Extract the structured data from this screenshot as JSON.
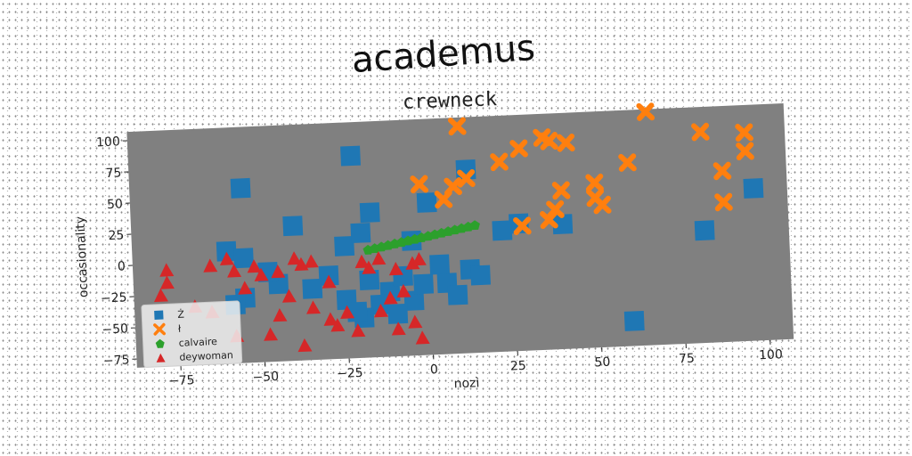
{
  "chart_data": {
    "type": "scatter",
    "title": "academus",
    "subtitle": "crewneck",
    "xlabel": "nozì",
    "ylabel": "occasionality",
    "xlim": [
      -88,
      107
    ],
    "ylim": [
      -82,
      107
    ],
    "xticks": [
      -75,
      -50,
      -25,
      0,
      25,
      50,
      75,
      100
    ],
    "yticks": [
      100,
      75,
      50,
      25,
      0,
      -25,
      -50,
      -75
    ],
    "grid": false,
    "legend_position": "lower-left",
    "colors": {
      "plot_bg": "#808080",
      "Ż": "#1f77b4",
      "ł": "#ff7f0e",
      "calvaire": "#2ca02c",
      "deywoman": "#d62728"
    },
    "series": [
      {
        "name": "Ż",
        "marker": "square",
        "color": "#1f77b4",
        "points": [
          [
            -22,
            80
          ],
          [
            -55,
            58
          ],
          [
            12,
            65
          ],
          [
            -40,
            26
          ],
          [
            -17,
            34
          ],
          [
            0,
            40
          ],
          [
            -25,
            8
          ],
          [
            -60,
            8
          ],
          [
            -55,
            2
          ],
          [
            -20,
            18
          ],
          [
            -5,
            10
          ],
          [
            27,
            20
          ],
          [
            22,
            15
          ],
          [
            40,
            18
          ],
          [
            82,
            8
          ],
          [
            97,
            40
          ],
          [
            -30,
            -15
          ],
          [
            -35,
            -25
          ],
          [
            -18,
            -20
          ],
          [
            -12,
            -30
          ],
          [
            5,
            -25
          ],
          [
            12,
            -15
          ],
          [
            15,
            -20
          ],
          [
            -8,
            -18
          ],
          [
            -15,
            -40
          ],
          [
            -20,
            -50
          ],
          [
            -25,
            -35
          ],
          [
            -45,
            -20
          ],
          [
            -55,
            -30
          ],
          [
            -58,
            -35
          ],
          [
            -48,
            -10
          ],
          [
            -22,
            -45
          ],
          [
            -5,
            -38
          ],
          [
            8,
            -35
          ],
          [
            60,
            -62
          ],
          [
            -2,
            -25
          ],
          [
            -10,
            -48
          ],
          [
            3,
            -10
          ]
        ]
      },
      {
        "name": "ł",
        "marker": "x",
        "color": "#ff7f0e",
        "points": [
          [
            10,
            100
          ],
          [
            66,
            105
          ],
          [
            95,
            85
          ],
          [
            82,
            87
          ],
          [
            35,
            88
          ],
          [
            37,
            85
          ],
          [
            42,
            83
          ],
          [
            28,
            80
          ],
          [
            22,
            70
          ],
          [
            60,
            65
          ],
          [
            12,
            58
          ],
          [
            -2,
            55
          ],
          [
            8,
            52
          ],
          [
            5,
            42
          ],
          [
            40,
            45
          ],
          [
            50,
            50
          ],
          [
            88,
            55
          ],
          [
            95,
            70
          ],
          [
            50,
            38
          ],
          [
            52,
            32
          ],
          [
            38,
            30
          ],
          [
            36,
            22
          ],
          [
            28,
            18
          ],
          [
            88,
            30
          ]
        ]
      },
      {
        "name": "calvaire",
        "marker": "pentagon",
        "color": "#2ca02c",
        "points": [
          [
            -18,
            4
          ],
          [
            -16,
            5
          ],
          [
            -14,
            6
          ],
          [
            -12,
            7
          ],
          [
            -10,
            8
          ],
          [
            -8,
            9
          ],
          [
            -6,
            10
          ],
          [
            -4,
            11
          ],
          [
            -2,
            12
          ],
          [
            0,
            13
          ],
          [
            2,
            14
          ],
          [
            4,
            15
          ],
          [
            6,
            16
          ],
          [
            8,
            17
          ],
          [
            10,
            18
          ],
          [
            12,
            19
          ],
          [
            14,
            20
          ]
        ]
      },
      {
        "name": "deywoman",
        "marker": "triangle",
        "color": "#d62728",
        "points": [
          [
            -78,
            -5
          ],
          [
            -65,
            -3
          ],
          [
            -60,
            2
          ],
          [
            -58,
            -8
          ],
          [
            -52,
            -5
          ],
          [
            -50,
            -12
          ],
          [
            -45,
            -10
          ],
          [
            -40,
            0
          ],
          [
            -38,
            -5
          ],
          [
            -35,
            -3
          ],
          [
            -30,
            -20
          ],
          [
            -20,
            -5
          ],
          [
            -18,
            -10
          ],
          [
            -15,
            -3
          ],
          [
            -10,
            -12
          ],
          [
            -5,
            -8
          ],
          [
            -3,
            -5
          ],
          [
            -8,
            -30
          ],
          [
            -12,
            -35
          ],
          [
            -15,
            -45
          ],
          [
            -25,
            -45
          ],
          [
            -28,
            -55
          ],
          [
            -22,
            -60
          ],
          [
            -30,
            -50
          ],
          [
            -35,
            -40
          ],
          [
            -45,
            -45
          ],
          [
            -48,
            -60
          ],
          [
            -38,
            -70
          ],
          [
            -58,
            -60
          ],
          [
            -65,
            -40
          ],
          [
            -70,
            -35
          ],
          [
            -78,
            -15
          ],
          [
            -80,
            -25
          ],
          [
            -10,
            -60
          ],
          [
            -5,
            -55
          ],
          [
            -3,
            -68
          ],
          [
            -42,
            -30
          ],
          [
            -55,
            -22
          ]
        ]
      }
    ]
  }
}
